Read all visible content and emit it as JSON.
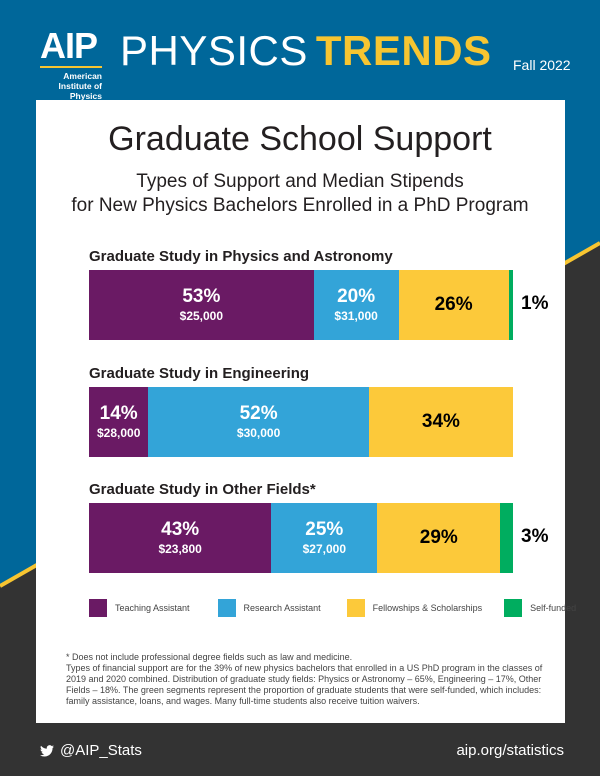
{
  "header": {
    "logo_text": "AIP",
    "logo_org": "American Institute of Physics",
    "brand_thin": "PHYSICS",
    "brand_bold": "TRENDS",
    "issue": "Fall 2022"
  },
  "colors": {
    "blue_bg": "#00679a",
    "dark_bg": "#333333",
    "stripe": "#f7c531",
    "teaching": "#6a1a64",
    "research": "#33a4d8",
    "fellowships": "#fcc93a",
    "self_funded": "#00ad5f"
  },
  "chart_data": {
    "type": "bar",
    "orientation": "horizontal-stacked-100",
    "title": "Graduate School Support",
    "subtitle": "Types of Support and Median Stipends for New Physics Bachelors Enrolled in a PhD Program",
    "subtitle_line1": "Types of Support and Median Stipends",
    "subtitle_line2": "for New Physics Bachelors Enrolled in a PhD Program",
    "legend_position": "bottom",
    "series_names": [
      "Teaching Assistant",
      "Research Assistant",
      "Fellowships & Scholarships",
      "Self-funded"
    ],
    "groups": [
      {
        "title": "Graduate Study in Physics and Astronomy",
        "values": [
          53,
          20,
          26,
          1
        ],
        "labels": [
          "53%",
          "20%",
          "26%",
          "1%"
        ],
        "stipends": [
          "$25,000",
          "$31,000",
          "",
          ""
        ]
      },
      {
        "title": "Graduate Study in Engineering",
        "values": [
          14,
          52,
          34,
          0
        ],
        "labels": [
          "14%",
          "52%",
          "34%",
          ""
        ],
        "stipends": [
          "$28,000",
          "$30,000",
          "",
          ""
        ]
      },
      {
        "title": "Graduate Study in Other Fields*",
        "values": [
          43,
          25,
          29,
          3
        ],
        "labels": [
          "43%",
          "25%",
          "29%",
          "3%"
        ],
        "stipends": [
          "$23,800",
          "$27,000",
          "",
          ""
        ]
      }
    ]
  },
  "notes": {
    "line1": "* Does not include professional degree fields such as law and medicine.",
    "line2": "Types of financial support are for the 39% of new physics bachelors that enrolled in a US PhD program in the classes of 2019 and 2020 combined. Distribution of graduate study fields: Physics or Astronomy – 65%, Engineering – 17%, Other Fields – 18%. The green segments represent the proportion of graduate students that were self-funded, which includes: family assistance, loans, and wages. Many full-time students also receive tuition waivers."
  },
  "footer": {
    "twitter_icon": "twitter-bird-icon",
    "twitter": "@AIP_Stats",
    "site": "aip.org/statistics"
  }
}
